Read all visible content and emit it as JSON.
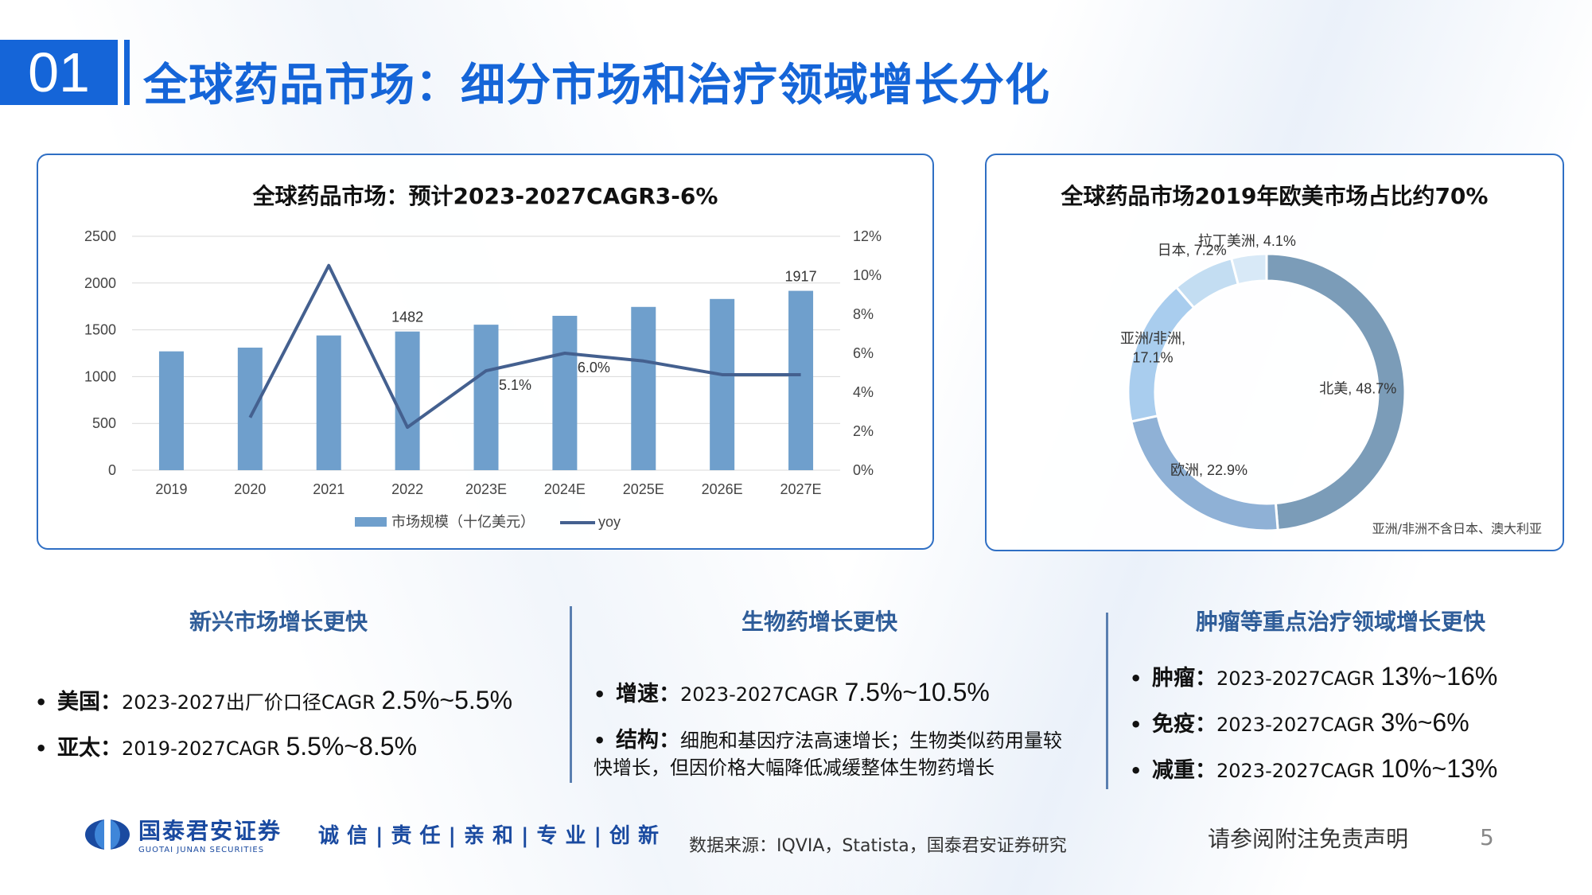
{
  "header": {
    "section_number": "01",
    "title": "全球药品市场：细分市场和治疗领域增长分化"
  },
  "chart_data": [
    {
      "type": "bar",
      "title": "全球药品市场：预计2023-2027CAGR3-6%",
      "categories": [
        "2019",
        "2020",
        "2021",
        "2022",
        "2023E",
        "2024E",
        "2025E",
        "2026E",
        "2027E"
      ],
      "series": [
        {
          "name": "市场规模（十亿美元）",
          "type": "bar",
          "axis": "left",
          "color": "#6f9fcc",
          "values": [
            1270,
            1310,
            1440,
            1482,
            1555,
            1650,
            1745,
            1830,
            1917
          ]
        },
        {
          "name": "yoy",
          "type": "line",
          "axis": "right",
          "color": "#44608f",
          "values": [
            null,
            2.7,
            10.5,
            2.2,
            5.1,
            6.0,
            5.6,
            4.9,
            4.9
          ]
        }
      ],
      "ylim_left": [
        0,
        2500
      ],
      "ylim_right": [
        0,
        12
      ],
      "yticks_left": [
        "0",
        "500",
        "1000",
        "1500",
        "2000",
        "2500"
      ],
      "yticks_right": [
        "0%",
        "2%",
        "4%",
        "6%",
        "8%",
        "10%",
        "12%"
      ],
      "data_labels": [
        {
          "series": 0,
          "index": 3,
          "text": "1482"
        },
        {
          "series": 0,
          "index": 8,
          "text": "1917"
        },
        {
          "series": 1,
          "index": 4,
          "text": "5.1%"
        },
        {
          "series": 1,
          "index": 5,
          "text": "6.0%"
        }
      ],
      "legend_position": "bottom",
      "grid": true
    },
    {
      "type": "pie",
      "variant": "donut",
      "title": "全球药品市场2019年欧美市场占比约70%",
      "slices": [
        {
          "label": "北美, 48.7%",
          "value": 48.7,
          "color": "#7b9cb8"
        },
        {
          "label": "欧洲, 22.9%",
          "value": 22.9,
          "color": "#8fb1d6"
        },
        {
          "label": "亚洲/非洲,\n17.1%",
          "value": 17.1,
          "color": "#a9cdee"
        },
        {
          "label": "日本, 7.2%",
          "value": 7.2,
          "color": "#c3ddf2"
        },
        {
          "label": "拉丁美洲, 4.1%",
          "value": 4.1,
          "color": "#d8e9f7"
        }
      ],
      "note": "亚洲/非洲不含日本、澳大利亚"
    }
  ],
  "columns": [
    {
      "heading": "新兴市场增长更快",
      "bullets": [
        {
          "key": "美国：",
          "text": "2023-2027出厂价口径CAGR ",
          "num": "2.5%~5.5%"
        },
        {
          "key": "亚太：",
          "text": "2019-2027CAGR ",
          "num": "5.5%~8.5%"
        }
      ]
    },
    {
      "heading": "生物药增长更快",
      "bullets": [
        {
          "key": "增速：",
          "text": "2023-2027CAGR ",
          "num": "7.5%~10.5%"
        },
        {
          "key": "结构：",
          "text": "细胞和基因疗法高速增长；生物类似药用量较快增长，但因价格大幅降低减缓整体生物药增长",
          "num": ""
        }
      ]
    },
    {
      "heading": "肿瘤等重点治疗领域增长更快",
      "bullets": [
        {
          "key": "肿瘤：",
          "text": "2023-2027CAGR ",
          "num": "13%~16%"
        },
        {
          "key": "免疫：",
          "text": "2023-2027CAGR ",
          "num": "3%~6%"
        },
        {
          "key": "减重：",
          "text": "2023-2027CAGR ",
          "num": "10%~13%"
        }
      ]
    }
  ],
  "footer": {
    "logo_cn": "国泰君安证券",
    "logo_en": "GUOTAI JUNAN SECURITIES",
    "slogan": "诚信|责任|亲和|专业|创新",
    "source": "数据来源：IQVIA，Statista，国泰君安证券研究",
    "disclaimer": "请参阅附注免责声明",
    "page_number": "5"
  }
}
